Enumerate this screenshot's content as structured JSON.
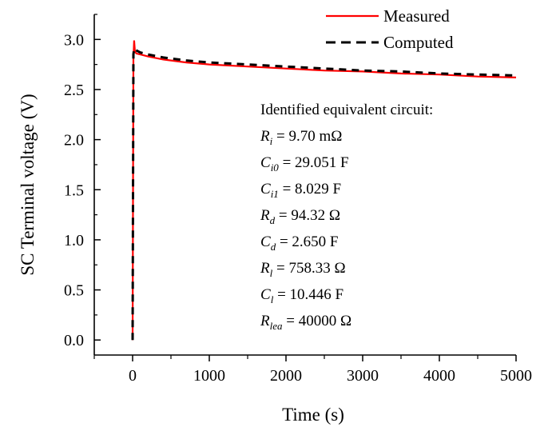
{
  "chart_data": {
    "type": "line",
    "title": "",
    "xlabel": "Time (s)",
    "ylabel": "SC Terminal voltage (V)",
    "xlim": [
      -500,
      5000
    ],
    "ylim": [
      -0.15,
      3.25
    ],
    "x_ticks": [
      0,
      1000,
      2000,
      3000,
      4000,
      5000
    ],
    "x_tick_labels": [
      "0",
      "1000",
      "2000",
      "3000",
      "4000",
      "5000"
    ],
    "y_ticks": [
      0.0,
      0.5,
      1.0,
      1.5,
      2.0,
      2.5,
      3.0
    ],
    "y_tick_labels": [
      "0.0",
      "0.5",
      "1.0",
      "1.5",
      "2.0",
      "2.5",
      "3.0"
    ],
    "grid": false,
    "legend": "top-right",
    "series": [
      {
        "name": "Measured",
        "color": "#ff0000",
        "style": "solid",
        "x": [
          0,
          10,
          20,
          30,
          50,
          100,
          200,
          400,
          700,
          1000,
          1500,
          2000,
          2500,
          3000,
          3500,
          4000,
          4500,
          5000
        ],
        "y": [
          0.0,
          2.8,
          2.99,
          2.88,
          2.86,
          2.85,
          2.83,
          2.8,
          2.77,
          2.75,
          2.73,
          2.71,
          2.69,
          2.68,
          2.66,
          2.65,
          2.63,
          2.62
        ]
      },
      {
        "name": "Computed",
        "color": "#000000",
        "style": "dashed",
        "x": [
          0,
          10,
          20,
          30,
          50,
          100,
          200,
          400,
          700,
          1000,
          1500,
          2000,
          2500,
          3000,
          3500,
          4000,
          4500,
          5000
        ],
        "y": [
          0.0,
          2.85,
          2.91,
          2.9,
          2.89,
          2.87,
          2.85,
          2.82,
          2.79,
          2.77,
          2.75,
          2.73,
          2.71,
          2.69,
          2.68,
          2.66,
          2.65,
          2.64
        ]
      }
    ],
    "annotation": {
      "heading": "Identified equivalent circuit:",
      "params": [
        {
          "sym": "R",
          "sub": "i",
          "eq": "= ",
          "val": "9.70 mΩ"
        },
        {
          "sym": "C",
          "sub": "i0",
          "eq": "= ",
          "val": "29.051 F"
        },
        {
          "sym": "C",
          "sub": "i1",
          "eq": "= ",
          "val": "8.029 F"
        },
        {
          "sym": "R",
          "sub": "d",
          "eq": "= ",
          "val": "94.32 Ω"
        },
        {
          "sym": "C",
          "sub": "d",
          "eq": "= ",
          "val": "2.650 F"
        },
        {
          "sym": "R",
          "sub": "l",
          "eq": "= ",
          "val": "758.33 Ω"
        },
        {
          "sym": "C",
          "sub": "l",
          "eq": "= ",
          "val": "10.446 F"
        },
        {
          "sym": "R",
          "sub": "lea",
          "eq": "= ",
          "val": "40000 Ω"
        }
      ]
    }
  }
}
